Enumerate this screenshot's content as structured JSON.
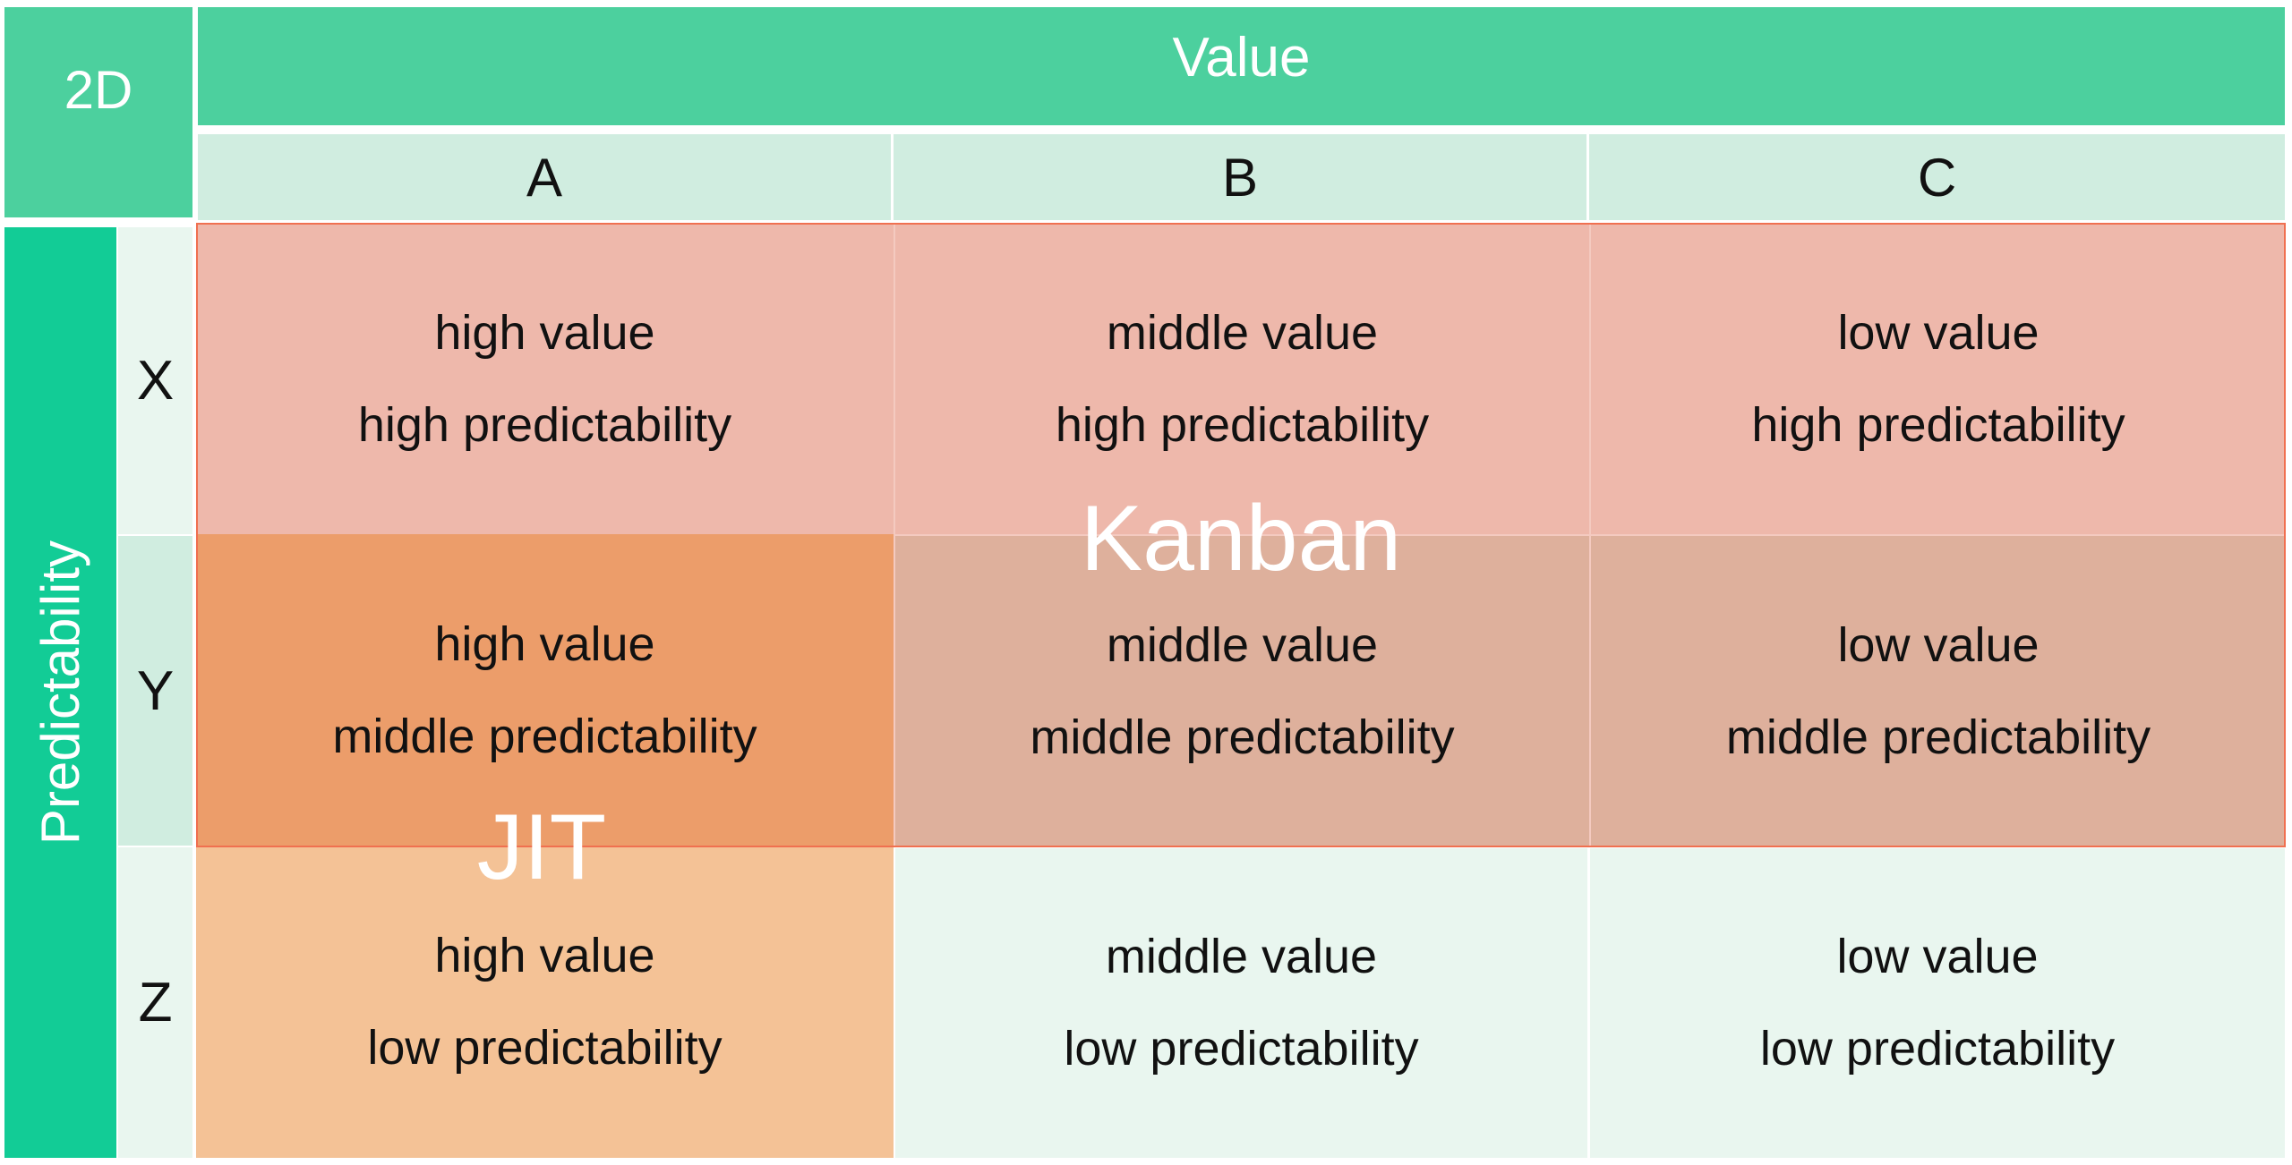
{
  "corner_label": "2D",
  "column_axis_label": "Value",
  "row_axis_label": "Predictability",
  "columns": [
    "A",
    "B",
    "C"
  ],
  "rows": [
    "X",
    "Y",
    "Z"
  ],
  "cells": [
    [
      {
        "line1": "high value",
        "line2": "high predictability"
      },
      {
        "line1": "middle value",
        "line2": "high predictability"
      },
      {
        "line1": "low value",
        "line2": "high predictability"
      }
    ],
    [
      {
        "line1": "high value",
        "line2": "middle predictability"
      },
      {
        "line1": "middle value",
        "line2": "middle predictability"
      },
      {
        "line1": "low value",
        "line2": "middle predictability"
      }
    ],
    [
      {
        "line1": "high value",
        "line2": "low predictability"
      },
      {
        "line1": "middle value",
        "line2": "low predictability"
      },
      {
        "line1": "low value",
        "line2": "low predictability"
      }
    ]
  ],
  "regions": {
    "kanban": "Kanban",
    "jit": "JIT"
  },
  "colors": {
    "header_green": "#4cd09e",
    "predictability_green": "#12cc96",
    "column_header_bg": "#d0ede0",
    "kanban_fill": "#eeb8ab",
    "kanban_y_fill": "#deb09c",
    "overlap_fill": "#ec9d6a",
    "jit_fill": "#f4c296",
    "plain_cell_fill": "#e9f6ef",
    "outline": "#f07050"
  }
}
